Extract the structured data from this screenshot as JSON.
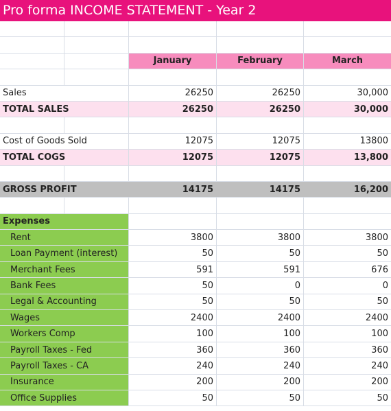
{
  "title": "Pro forma INCOME STATEMENT - Year 2",
  "months": [
    "January",
    "February",
    "March"
  ],
  "sales": {
    "label": "Sales",
    "values": [
      "26250",
      "26250",
      "30,000"
    ]
  },
  "total_sales": {
    "label": "TOTAL SALES",
    "values": [
      "26250",
      "26250",
      "30,000"
    ]
  },
  "cogs": {
    "label": "Cost of Goods Sold",
    "values": [
      "12075",
      "12075",
      "13800"
    ]
  },
  "total_cogs": {
    "label": "TOTAL COGS",
    "values": [
      "12075",
      "12075",
      "13,800"
    ]
  },
  "gross_profit": {
    "label": "GROSS PROFIT",
    "values": [
      "14175",
      "14175",
      "16,200"
    ]
  },
  "expenses_header": "Expenses",
  "expenses": [
    {
      "label": "Rent",
      "values": [
        "3800",
        "3800",
        "3800"
      ]
    },
    {
      "label": "Loan Payment (interest)",
      "values": [
        "50",
        "50",
        "50"
      ]
    },
    {
      "label": "Merchant Fees",
      "values": [
        "591",
        "591",
        "676"
      ]
    },
    {
      "label": "Bank Fees",
      "values": [
        "50",
        "0",
        "0"
      ]
    },
    {
      "label": "Legal & Accounting",
      "values": [
        "50",
        "50",
        "50"
      ]
    },
    {
      "label": "Wages",
      "values": [
        "2400",
        "2400",
        "2400"
      ]
    },
    {
      "label": "Workers Comp",
      "values": [
        "100",
        "100",
        "100"
      ]
    },
    {
      "label": "Payroll Taxes - Fed",
      "values": [
        "360",
        "360",
        "360"
      ]
    },
    {
      "label": "Payroll Taxes - CA",
      "values": [
        "240",
        "240",
        "240"
      ]
    },
    {
      "label": "Insurance",
      "values": [
        "200",
        "200",
        "200"
      ]
    },
    {
      "label": "Office Supplies",
      "values": [
        "50",
        "50",
        "50"
      ]
    }
  ],
  "colors": {
    "title_bg": "#e8127c",
    "month_header_bg": "#f78cbd",
    "total_row_bg": "#fde0ee",
    "gross_profit_bg": "#bfbfbf",
    "expenses_bg": "#8ccc50"
  }
}
